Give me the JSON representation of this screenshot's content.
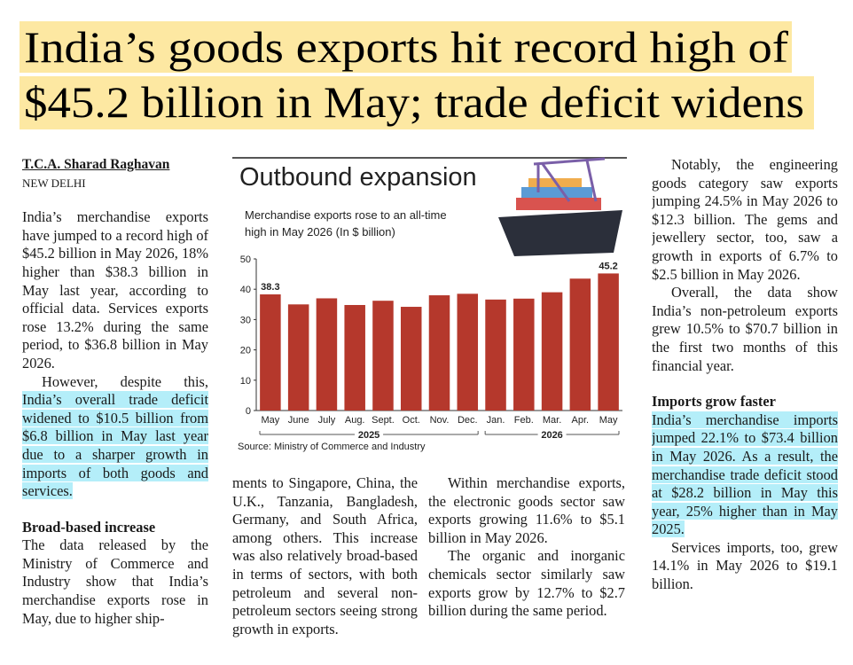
{
  "headline": [
    "India’s goods exports hit record high of",
    "$45.2 billion in May; trade deficit widens"
  ],
  "byline": "T.C.A. Sharad Raghavan",
  "dateline": "NEW DELHI",
  "body": {
    "p1": "India’s merchandise exports have jumped to a record high of $45.2 billion in May 2026, 18% higher than $38.3 billion in May last year, according to official data. Services exports rose 13.2% during the same period, to $36.8 billion in May 2026.",
    "p2": {
      "lead": "However, despite this,",
      "highlight": "India’s overall trade deficit widened to $10.5 billion from $6.8 billion in May last year due to a sharper growth in imports of both goods and services."
    },
    "subhead1": "Broad-based increase",
    "p3a": "The data released by the Ministry of Commerce and Industry show that India’s merchandise exports rose in May, due to higher ship-",
    "p3b": "ments to Singapore, China, the U.K., Tanzania, Bangladesh, Germany, and South Africa, among others. This increase was also relatively broad-based in terms of sectors, with both petroleum and several non-petroleum sectors seeing strong growth in exports.",
    "p4": "Within merchandise exports, the electronic goods sector saw exports growing 11.6% to $5.1 billion in May 2026.",
    "p5": "The organic and inorganic chemicals sector similarly saw exports grow by 12.7% to $2.7 billion during the same period.",
    "p6": "Notably, the engineering goods category saw exports jumping 24.5% in May 2026 to $12.3 billion. The gems and jewellery sector, too, saw a growth in exports of 6.7% to $2.5 billion in May 2026.",
    "p7": "Overall, the data show India’s non-petroleum exports grew 10.5% to $70.7 billion in the first two months of this financial year.",
    "subhead2": "Imports grow faster",
    "p8": "India’s merchandise imports jumped 22.1% to $73.4 billion in May 2026. As a result, the merchandise trade deficit stood at $28.2 billion in May this year, 25% higher than in May 2025.",
    "p9": "Services imports, too, grew 14.1% in May 2026 to $19.1 billion."
  },
  "chart_data": {
    "type": "bar",
    "title": "Outbound expansion",
    "subtitle": "Merchandise exports rose to an all-time high in May 2026 (In $ billion)",
    "source": "Source: Ministry of Commerce and Industry",
    "categories": [
      "May",
      "June",
      "July",
      "Aug.",
      "Sept.",
      "Oct.",
      "Nov.",
      "Dec.",
      "Jan.",
      "Feb.",
      "Mar.",
      "Apr.",
      "May"
    ],
    "groups": [
      {
        "label": "2025",
        "count": 8
      },
      {
        "label": "2026",
        "count": 5
      }
    ],
    "values": [
      38.3,
      35,
      37,
      34.8,
      36.2,
      34.2,
      38,
      38.5,
      36.6,
      36.9,
      39,
      43.5,
      45.2
    ],
    "value_labels": [
      "38.3",
      null,
      null,
      null,
      null,
      null,
      null,
      null,
      null,
      null,
      null,
      null,
      "45.2"
    ],
    "color": "#b5382c",
    "ylim": [
      0,
      50
    ],
    "yticks": [
      0,
      10,
      20,
      30,
      40,
      50
    ],
    "grid": false
  }
}
